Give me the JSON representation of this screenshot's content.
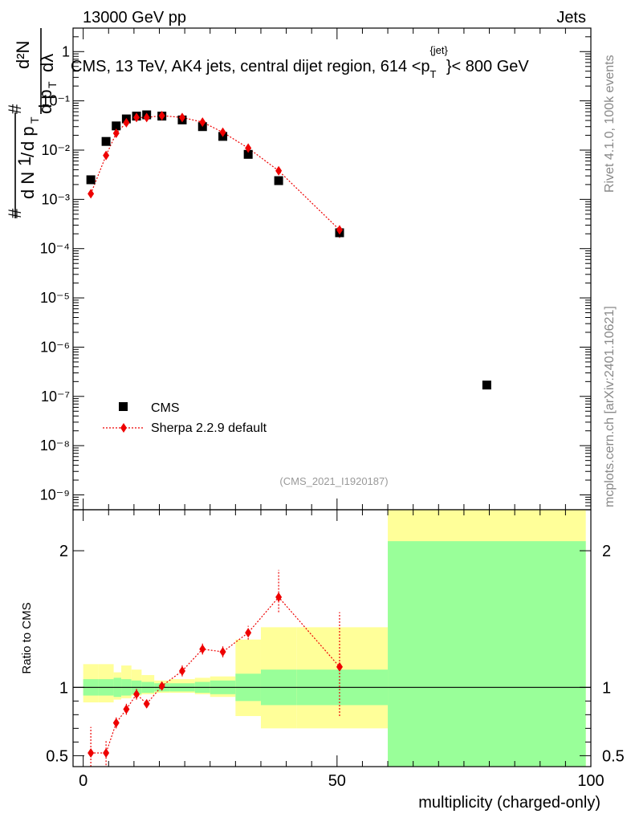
{
  "header": {
    "left": "13000 GeV pp",
    "right": "Jets"
  },
  "side_text": {
    "rivet": "Rivet 4.1.0,  100k events",
    "mcplots": "mcplots.cern.ch [arXiv:2401.10621]"
  },
  "chart_data": [
    {
      "type": "scatter",
      "title": "CMS, 13 TeV, AK4 jets, central dijet region, 614 <p_T^{jet}> < 800 GeV",
      "title_parts": {
        "prefix": "CMS, 13 TeV, AK4 jets, central dijet region, 614 <p",
        "sub": "T",
        "sup": "{jet}",
        "suffix": "}< 800 GeV"
      },
      "ylabel_parts": {
        "one": "1",
        "hash": "#",
        "dN": "d N",
        "slash": "/",
        "dpT": "d p",
        "T": "T",
        "d2N": "d²N",
        "dpTdlambda": "d p",
        "lambda": "dλ"
      },
      "yscale": "log",
      "ylim": [
        5e-10,
        3
      ],
      "xlim": [
        -2,
        100
      ],
      "y_tick_labels": [
        {
          "v": 1,
          "label": "1"
        },
        {
          "v": 0.1,
          "label": "10⁻¹"
        },
        {
          "v": 0.01,
          "label": "10⁻²"
        },
        {
          "v": 0.001,
          "label": "10⁻³"
        },
        {
          "v": 0.0001,
          "label": "10⁻⁴"
        },
        {
          "v": 1e-05,
          "label": "10⁻⁵"
        },
        {
          "v": 1e-06,
          "label": "10⁻⁶"
        },
        {
          "v": 1e-07,
          "label": "10⁻⁷"
        },
        {
          "v": 1e-08,
          "label": "10⁻⁸"
        },
        {
          "v": 1e-09,
          "label": "10⁻⁹"
        }
      ],
      "watermark": "(CMS_2021_I1920187)",
      "legend": [
        {
          "name": "CMS",
          "marker": "square",
          "color": "#000000"
        },
        {
          "name": "Sherpa 2.2.9 default",
          "marker": "diamond",
          "color": "#ee0000"
        }
      ],
      "series": [
        {
          "name": "CMS",
          "color": "#000000",
          "marker": "square",
          "x": [
            1.5,
            4.5,
            6.5,
            8.5,
            10.5,
            12.5,
            15.5,
            19.5,
            23.5,
            27.5,
            32.5,
            38.5,
            50.5,
            79.5
          ],
          "y": [
            0.0025,
            0.015,
            0.031,
            0.043,
            0.049,
            0.052,
            0.049,
            0.041,
            0.03,
            0.019,
            0.0082,
            0.0024,
            0.00021,
            1.7e-07
          ]
        },
        {
          "name": "Sherpa 2.2.9 default",
          "color": "#ee0000",
          "marker": "diamond",
          "line": "dotted",
          "x": [
            1.5,
            4.5,
            6.5,
            8.5,
            10.5,
            12.5,
            15.5,
            19.5,
            23.5,
            27.5,
            32.5,
            38.5,
            50.5
          ],
          "y": [
            0.0013,
            0.0078,
            0.022,
            0.036,
            0.046,
            0.046,
            0.05,
            0.046,
            0.037,
            0.023,
            0.011,
            0.0038,
            0.00024
          ],
          "yerr_low": [
            0.0011,
            0.0069,
            0.0205,
            0.0345,
            0.0445,
            0.0445,
            0.0485,
            0.0445,
            0.0355,
            0.0215,
            0.01,
            0.0033,
            0.000165
          ],
          "yerr_high": [
            0.00155,
            0.0087,
            0.0235,
            0.0375,
            0.0475,
            0.0475,
            0.0515,
            0.0475,
            0.0385,
            0.0245,
            0.012,
            0.0043,
            0.00029
          ]
        }
      ]
    },
    {
      "type": "scatter",
      "ylabel": "Ratio to CMS",
      "xlabel": "multiplicity (charged-only)",
      "xlim": [
        -2,
        100
      ],
      "ylim": [
        0.42,
        2.3
      ],
      "x_tick_labels": [
        {
          "v": 0,
          "label": "0"
        },
        {
          "v": 50,
          "label": "50"
        },
        {
          "v": 100,
          "label": "100"
        }
      ],
      "y_tick_labels": [
        {
          "v": 0.5,
          "label": "0.5"
        },
        {
          "v": 1,
          "label": "1"
        },
        {
          "v": 2,
          "label": "2"
        }
      ],
      "reference_line": 1,
      "uncertainty_bands": {
        "edges": [
          0,
          3,
          6,
          7.5,
          9.5,
          11.5,
          14,
          17,
          22,
          25,
          30,
          35,
          42,
          60,
          99
        ],
        "stat_low": [
          0.94,
          0.94,
          0.93,
          0.94,
          0.95,
          0.96,
          0.97,
          0.97,
          0.96,
          0.95,
          0.9,
          0.87,
          0.87,
          0.4
        ],
        "stat_high": [
          1.06,
          1.06,
          1.07,
          1.06,
          1.05,
          1.04,
          1.03,
          1.03,
          1.04,
          1.05,
          1.1,
          1.13,
          1.13,
          2.07
        ],
        "total_low": [
          0.89,
          0.89,
          0.91,
          0.92,
          0.94,
          0.95,
          0.96,
          0.96,
          0.95,
          0.93,
          0.79,
          0.7,
          0.7,
          0.4
        ],
        "total_high": [
          1.17,
          1.17,
          1.11,
          1.16,
          1.13,
          1.09,
          1.05,
          1.06,
          1.07,
          1.08,
          1.35,
          1.44,
          1.44,
          2.3
        ],
        "stat_color": "#99ff99",
        "total_color": "#ffff99"
      },
      "series": [
        {
          "name": "Sherpa 2.2.9 default",
          "color": "#ee0000",
          "marker": "diamond",
          "line": "dotted",
          "x": [
            1.5,
            4.5,
            6.5,
            8.5,
            10.5,
            12.5,
            15.5,
            19.5,
            23.5,
            27.5,
            32.5,
            38.5,
            50.5
          ],
          "y": [
            0.52,
            0.52,
            0.74,
            0.84,
            0.95,
            0.88,
            1.01,
            1.12,
            1.28,
            1.26,
            1.4,
            1.66,
            1.15
          ],
          "yerr_low": [
            0.35,
            0.43,
            0.7,
            0.8,
            0.91,
            0.85,
            0.98,
            1.08,
            1.24,
            1.22,
            1.35,
            1.55,
            0.79
          ],
          "yerr_high": [
            0.71,
            0.61,
            0.78,
            0.88,
            0.99,
            0.92,
            1.04,
            1.16,
            1.32,
            1.3,
            1.45,
            1.86,
            1.55
          ]
        }
      ]
    }
  ]
}
